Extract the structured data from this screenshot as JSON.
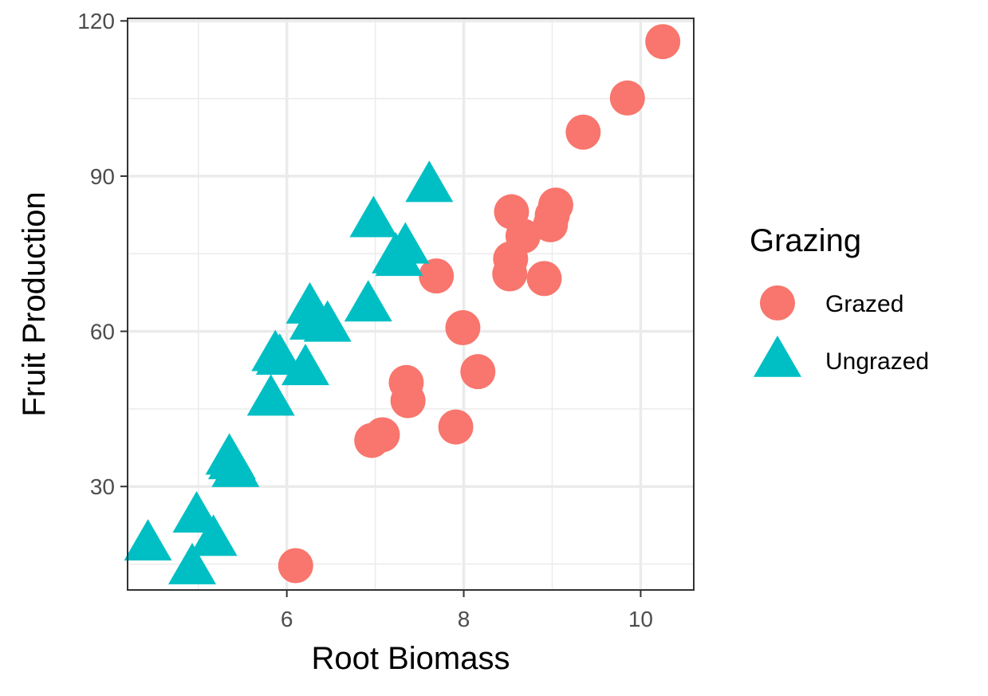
{
  "chart_data": {
    "type": "scatter",
    "xlabel": "Root Biomass",
    "ylabel": "Fruit Production",
    "xlim": [
      4.2,
      10.6
    ],
    "ylim": [
      10,
      120.5
    ],
    "x_ticks": [
      6,
      8,
      10
    ],
    "y_ticks": [
      30,
      60,
      90,
      120
    ],
    "x_tick_labels": [
      "6",
      "8",
      "10"
    ],
    "y_tick_labels": [
      "30",
      "60",
      "90",
      "120"
    ],
    "grid": true,
    "legend": {
      "title": "Grazing",
      "placement": "right"
    },
    "series": [
      {
        "name": "Grazed",
        "color": "#F8766D",
        "shape": "circle",
        "points": [
          {
            "x": 6.1,
            "y": 14.7
          },
          {
            "x": 6.96,
            "y": 38.9
          },
          {
            "x": 7.08,
            "y": 40.0
          },
          {
            "x": 7.37,
            "y": 46.6
          },
          {
            "x": 7.35,
            "y": 50.1
          },
          {
            "x": 7.69,
            "y": 70.7
          },
          {
            "x": 7.91,
            "y": 41.5
          },
          {
            "x": 7.99,
            "y": 60.7
          },
          {
            "x": 8.16,
            "y": 52.2
          },
          {
            "x": 8.52,
            "y": 71.1
          },
          {
            "x": 8.53,
            "y": 74.0
          },
          {
            "x": 8.54,
            "y": 83.1
          },
          {
            "x": 8.67,
            "y": 78.4
          },
          {
            "x": 8.91,
            "y": 70.2
          },
          {
            "x": 8.98,
            "y": 80.6
          },
          {
            "x": 9.0,
            "y": 82.4
          },
          {
            "x": 9.04,
            "y": 84.4
          },
          {
            "x": 9.35,
            "y": 98.5
          },
          {
            "x": 9.85,
            "y": 105.1
          },
          {
            "x": 10.25,
            "y": 116.0
          }
        ]
      },
      {
        "name": "Ungrazed",
        "color": "#00BFC4",
        "shape": "triangle",
        "points": [
          {
            "x": 4.43,
            "y": 18.9
          },
          {
            "x": 4.93,
            "y": 14.3
          },
          {
            "x": 4.98,
            "y": 24.3
          },
          {
            "x": 5.17,
            "y": 19.8
          },
          {
            "x": 5.35,
            "y": 35.5
          },
          {
            "x": 5.38,
            "y": 34.6
          },
          {
            "x": 5.42,
            "y": 33.1
          },
          {
            "x": 5.82,
            "y": 46.9
          },
          {
            "x": 5.87,
            "y": 55.5
          },
          {
            "x": 5.92,
            "y": 54.8
          },
          {
            "x": 6.21,
            "y": 52.8
          },
          {
            "x": 6.26,
            "y": 64.7
          },
          {
            "x": 6.3,
            "y": 61.6
          },
          {
            "x": 6.46,
            "y": 61.2
          },
          {
            "x": 6.92,
            "y": 65.1
          },
          {
            "x": 6.98,
            "y": 81.4
          },
          {
            "x": 7.23,
            "y": 74.4
          },
          {
            "x": 7.34,
            "y": 76.3
          },
          {
            "x": 7.27,
            "y": 73.9
          },
          {
            "x": 7.61,
            "y": 88.2
          }
        ]
      }
    ]
  }
}
